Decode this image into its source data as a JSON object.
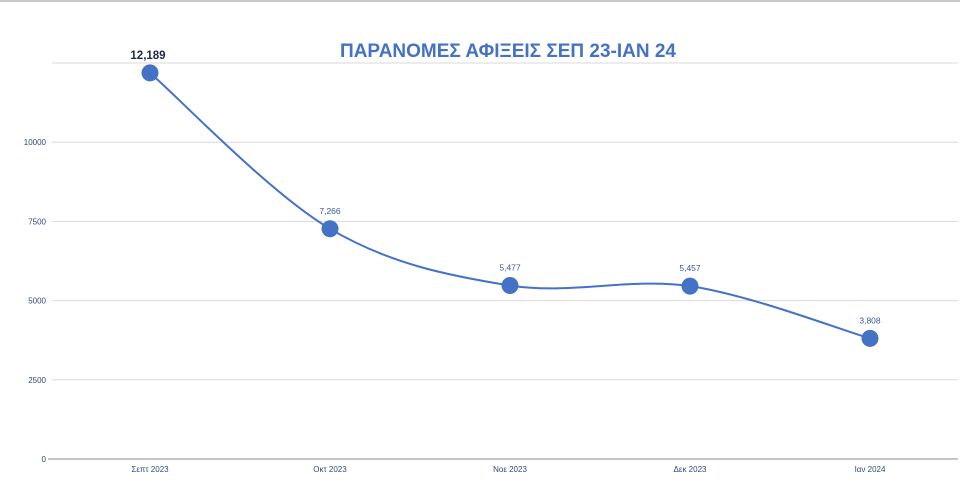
{
  "chart_data": {
    "type": "line",
    "title": "ΠΑΡΑΝΟΜΕΣ ΑΦΙΞΕΙΣ ΣΕΠ 23-ΙΑΝ 24",
    "xlabel": "",
    "ylabel": "",
    "categories": [
      "Σεπτ 2023",
      "Οκτ 2023",
      "Νοε 2023",
      "Δεκ 2023",
      "Ιαν 2024"
    ],
    "series": [
      {
        "values": [
          12189,
          7266,
          5477,
          5457,
          3808
        ],
        "data_labels": [
          "12,189",
          "7,266",
          "5,477",
          "5,457",
          "3,808"
        ],
        "color": "#4472C4",
        "smooth": true,
        "marker": "circle"
      }
    ],
    "ylim": [
      0,
      12500
    ],
    "yticks": [
      0,
      2500,
      5000,
      7500,
      10000,
      12500
    ],
    "ytick_labels": [
      "0",
      "2500",
      "5000",
      "7500",
      "10000",
      ""
    ],
    "grid": true,
    "legend": "none"
  },
  "colors": {
    "title": "#4472C4",
    "gridline": "#D9D9D9",
    "axis": "#8C8C8C",
    "tick_label": "#2F4A7A",
    "data_label": "#3A5795",
    "data_label_emphasis": "#1F2A44"
  }
}
